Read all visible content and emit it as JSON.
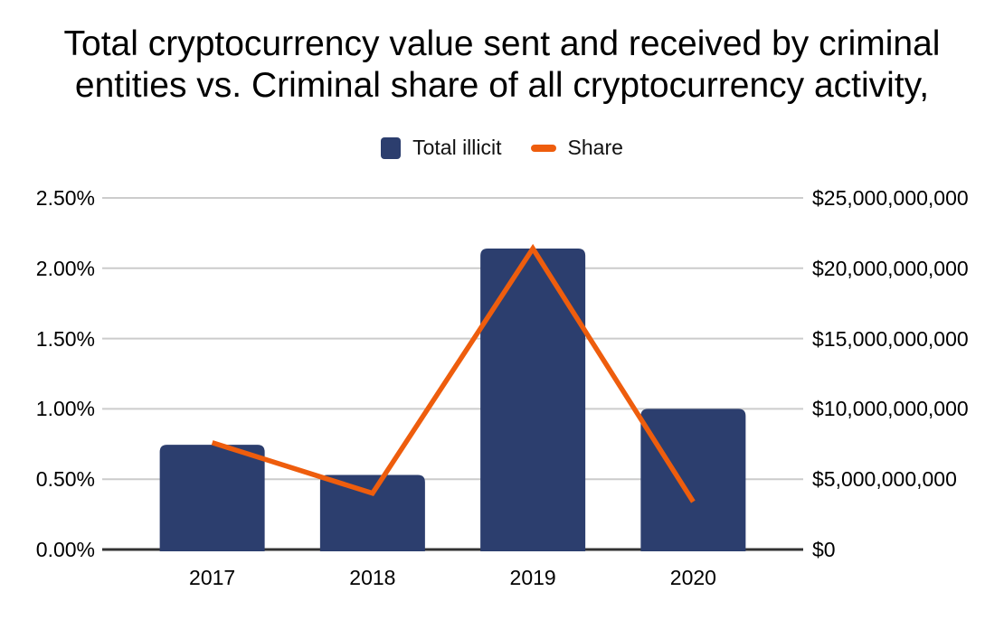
{
  "title": "Total cryptocurrency value sent and received by criminal entities vs. Criminal share of all cryptocurrency activity,",
  "legend": {
    "items": [
      {
        "label": "Total illicit",
        "type": "bar",
        "color": "#2C3E6E"
      },
      {
        "label": "Share",
        "type": "line",
        "color": "#EE5D0D"
      }
    ]
  },
  "chart_data": {
    "type": "combo",
    "title": "Total cryptocurrency value sent and received by criminal entities vs. Criminal share of all cryptocurrency activity,",
    "categories": [
      "2017",
      "2018",
      "2019",
      "2020"
    ],
    "series": [
      {
        "name": "Total illicit",
        "type": "bar",
        "axis": "right",
        "color": "#2C3E6E",
        "values": [
          7450000000,
          5300000000,
          21400000000,
          10000000000
        ]
      },
      {
        "name": "Share",
        "type": "line",
        "axis": "left",
        "color": "#EE5D0D",
        "values": [
          0.76,
          0.4,
          2.14,
          0.34
        ]
      }
    ],
    "left_axis": {
      "unit": "percent",
      "min": 0,
      "max": 2.5,
      "ticks": [
        "0.00%",
        "0.50%",
        "1.00%",
        "1.50%",
        "2.00%",
        "2.50%"
      ]
    },
    "right_axis": {
      "unit": "USD",
      "min": 0,
      "max": 25000000000,
      "ticks": [
        "$0",
        "$5,000,000,000",
        "$10,000,000,000",
        "$15,000,000,000",
        "$20,000,000,000",
        "$25,000,000,000"
      ]
    },
    "grid": true,
    "legend_position": "top",
    "colors": {
      "grid": "#CCCCCC",
      "axis": "#333333",
      "text": "#000000",
      "background": "#FFFFFF"
    }
  }
}
